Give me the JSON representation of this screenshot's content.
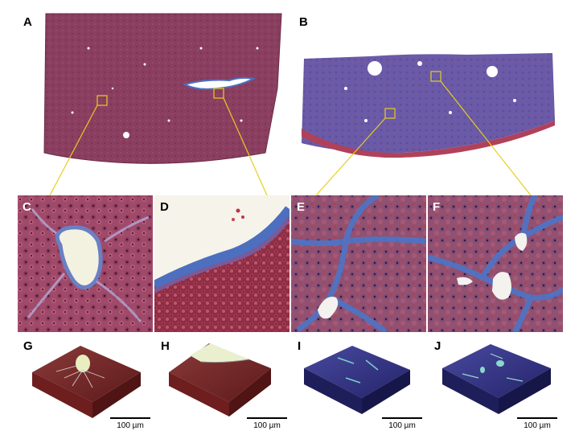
{
  "panels": {
    "A": "A",
    "B": "B",
    "C": "C",
    "D": "D",
    "E": "E",
    "F": "F",
    "G": "G",
    "H": "H",
    "I": "I",
    "J": "J"
  },
  "scale_bar_label": "100 µm",
  "colors": {
    "tissue_red": "#8a3b5a",
    "tissue_blue": "#5d5aa8",
    "fibrosis_blue": "#4f73c2",
    "highlight_yellow": "#e6cf1f",
    "volume_red": "#7a1f1f",
    "volume_blue": "#2a2a7a"
  }
}
